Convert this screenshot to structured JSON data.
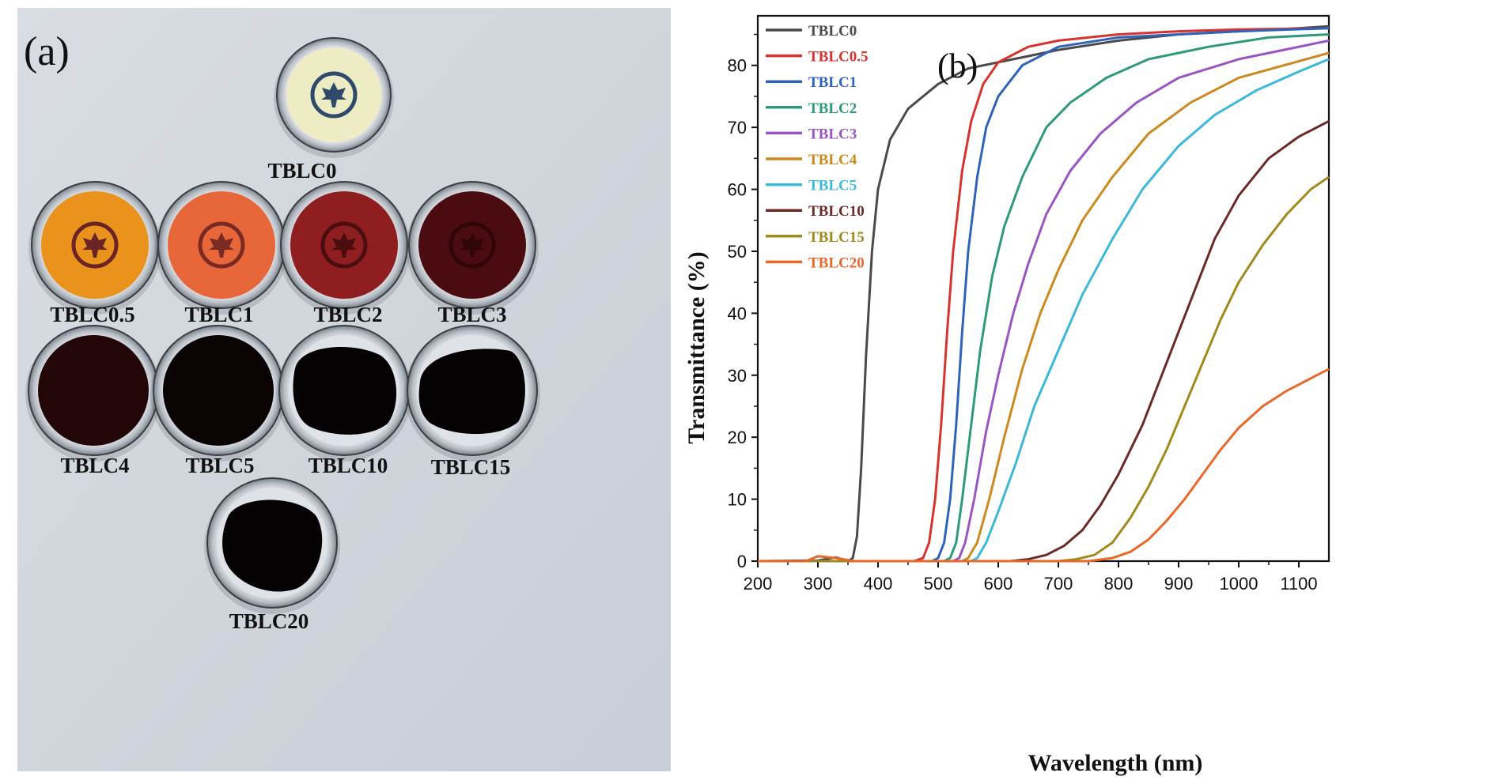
{
  "panel_a": {
    "letter": "(a)",
    "samples": [
      {
        "label": "TBLC0",
        "fill": "#eeecc4",
        "shape": "circle",
        "emblem": "#2f4a6a"
      },
      {
        "label": "TBLC0.5",
        "fill": "#e9921c",
        "shape": "circle",
        "emblem": "#6a2424"
      },
      {
        "label": "TBLC1",
        "fill": "#e8673a",
        "shape": "circle",
        "emblem": "#7a2a22"
      },
      {
        "label": "TBLC2",
        "fill": "#8e1e20",
        "shape": "circle",
        "emblem": "#4a0e10"
      },
      {
        "label": "TBLC3",
        "fill": "#4a0c10",
        "shape": "circle",
        "emblem": "#300608"
      },
      {
        "label": "TBLC4",
        "fill": "#220608",
        "shape": "circle",
        "emblem": ""
      },
      {
        "label": "TBLC5",
        "fill": "#0a0304",
        "shape": "circle",
        "emblem": ""
      },
      {
        "label": "TBLC10",
        "fill": "#050203",
        "shape": "irregular",
        "emblem": ""
      },
      {
        "label": "TBLC15",
        "fill": "#050203",
        "shape": "irregular",
        "emblem": ""
      },
      {
        "label": "TBLC20",
        "fill": "#050203",
        "shape": "irregular",
        "emblem": ""
      }
    ]
  },
  "chart_data": {
    "type": "line",
    "panel_letter": "(b)",
    "title": "",
    "xlabel": "Wavelength (nm)",
    "ylabel": "Transmittance (%)",
    "xlim": [
      200,
      1150
    ],
    "ylim": [
      0,
      88
    ],
    "xticks": [
      200,
      300,
      400,
      500,
      600,
      700,
      800,
      900,
      1000,
      1100
    ],
    "yticks": [
      0,
      10,
      20,
      30,
      40,
      50,
      60,
      70,
      80
    ],
    "legend_position": "top-left",
    "series": [
      {
        "name": "TBLC0",
        "color": "#4a4a4a",
        "points": [
          [
            200,
            0
          ],
          [
            300,
            0.1
          ],
          [
            330,
            0.6
          ],
          [
            350,
            0
          ],
          [
            358,
            0.5
          ],
          [
            365,
            4
          ],
          [
            372,
            15
          ],
          [
            380,
            33
          ],
          [
            390,
            50
          ],
          [
            400,
            60
          ],
          [
            420,
            68
          ],
          [
            450,
            73
          ],
          [
            500,
            77
          ],
          [
            550,
            79.5
          ],
          [
            600,
            80.5
          ],
          [
            650,
            81.5
          ],
          [
            700,
            82.5
          ],
          [
            800,
            84
          ],
          [
            900,
            85
          ],
          [
            1000,
            85.5
          ],
          [
            1100,
            86
          ],
          [
            1150,
            86.3
          ]
        ]
      },
      {
        "name": "TBLC0.5",
        "color": "#d6332e",
        "points": [
          [
            200,
            0
          ],
          [
            460,
            0
          ],
          [
            475,
            0.5
          ],
          [
            485,
            3
          ],
          [
            495,
            10
          ],
          [
            505,
            22
          ],
          [
            515,
            37
          ],
          [
            525,
            50
          ],
          [
            540,
            63
          ],
          [
            555,
            71
          ],
          [
            575,
            77
          ],
          [
            600,
            80.5
          ],
          [
            650,
            83
          ],
          [
            700,
            84
          ],
          [
            800,
            85
          ],
          [
            900,
            85.5
          ],
          [
            1000,
            85.8
          ],
          [
            1150,
            86
          ]
        ]
      },
      {
        "name": "TBLC1",
        "color": "#2e63b8",
        "points": [
          [
            200,
            0
          ],
          [
            490,
            0
          ],
          [
            500,
            0.5
          ],
          [
            510,
            3
          ],
          [
            520,
            10
          ],
          [
            530,
            22
          ],
          [
            540,
            37
          ],
          [
            550,
            50
          ],
          [
            565,
            62
          ],
          [
            580,
            70
          ],
          [
            600,
            75
          ],
          [
            640,
            80
          ],
          [
            700,
            83
          ],
          [
            800,
            84.5
          ],
          [
            900,
            85
          ],
          [
            1000,
            85.5
          ],
          [
            1150,
            86
          ]
        ]
      },
      {
        "name": "TBLC2",
        "color": "#2e9a7a",
        "points": [
          [
            200,
            0
          ],
          [
            510,
            0
          ],
          [
            520,
            0.5
          ],
          [
            530,
            3
          ],
          [
            540,
            10
          ],
          [
            555,
            22
          ],
          [
            570,
            34
          ],
          [
            590,
            46
          ],
          [
            610,
            54
          ],
          [
            640,
            62
          ],
          [
            680,
            70
          ],
          [
            720,
            74
          ],
          [
            780,
            78
          ],
          [
            850,
            81
          ],
          [
            950,
            83
          ],
          [
            1050,
            84.5
          ],
          [
            1150,
            85
          ]
        ]
      },
      {
        "name": "TBLC3",
        "color": "#9b55c3",
        "points": [
          [
            200,
            0
          ],
          [
            525,
            0
          ],
          [
            535,
            0.5
          ],
          [
            545,
            3
          ],
          [
            560,
            10
          ],
          [
            580,
            21
          ],
          [
            600,
            30
          ],
          [
            625,
            40
          ],
          [
            650,
            48
          ],
          [
            680,
            56
          ],
          [
            720,
            63
          ],
          [
            770,
            69
          ],
          [
            830,
            74
          ],
          [
            900,
            78
          ],
          [
            1000,
            81
          ],
          [
            1150,
            84
          ]
        ]
      },
      {
        "name": "TBLC4",
        "color": "#cc8a1e",
        "points": [
          [
            200,
            0
          ],
          [
            540,
            0
          ],
          [
            550,
            0.5
          ],
          [
            565,
            3
          ],
          [
            585,
            10
          ],
          [
            610,
            20
          ],
          [
            640,
            31
          ],
          [
            670,
            40
          ],
          [
            700,
            47
          ],
          [
            740,
            55
          ],
          [
            790,
            62
          ],
          [
            850,
            69
          ],
          [
            920,
            74
          ],
          [
            1000,
            78
          ],
          [
            1150,
            82
          ]
        ]
      },
      {
        "name": "TBLC5",
        "color": "#3cb8d8",
        "points": [
          [
            200,
            0
          ],
          [
            555,
            0
          ],
          [
            565,
            0.5
          ],
          [
            580,
            3
          ],
          [
            600,
            8
          ],
          [
            630,
            16
          ],
          [
            660,
            25
          ],
          [
            700,
            34
          ],
          [
            740,
            43
          ],
          [
            790,
            52
          ],
          [
            840,
            60
          ],
          [
            900,
            67
          ],
          [
            960,
            72
          ],
          [
            1030,
            76
          ],
          [
            1100,
            79
          ],
          [
            1150,
            81
          ]
        ]
      },
      {
        "name": "TBLC10",
        "color": "#6a2a28",
        "points": [
          [
            200,
            0
          ],
          [
            620,
            0
          ],
          [
            650,
            0.3
          ],
          [
            680,
            1
          ],
          [
            710,
            2.5
          ],
          [
            740,
            5
          ],
          [
            770,
            9
          ],
          [
            800,
            14
          ],
          [
            840,
            22
          ],
          [
            880,
            32
          ],
          [
            920,
            42
          ],
          [
            960,
            52
          ],
          [
            1000,
            59
          ],
          [
            1050,
            65
          ],
          [
            1100,
            68.5
          ],
          [
            1150,
            71
          ]
        ]
      },
      {
        "name": "TBLC15",
        "color": "#a08a1e",
        "points": [
          [
            200,
            0
          ],
          [
            700,
            0
          ],
          [
            730,
            0.3
          ],
          [
            760,
            1
          ],
          [
            790,
            3
          ],
          [
            820,
            7
          ],
          [
            850,
            12
          ],
          [
            880,
            18
          ],
          [
            910,
            25
          ],
          [
            940,
            32
          ],
          [
            970,
            39
          ],
          [
            1000,
            45
          ],
          [
            1040,
            51
          ],
          [
            1080,
            56
          ],
          [
            1120,
            60
          ],
          [
            1150,
            62
          ]
        ]
      },
      {
        "name": "TBLC20",
        "color": "#e8682a",
        "points": [
          [
            200,
            0
          ],
          [
            280,
            0
          ],
          [
            300,
            0.8
          ],
          [
            330,
            0.5
          ],
          [
            360,
            0
          ],
          [
            750,
            0
          ],
          [
            790,
            0.5
          ],
          [
            820,
            1.5
          ],
          [
            850,
            3.5
          ],
          [
            880,
            6.5
          ],
          [
            910,
            10
          ],
          [
            940,
            14
          ],
          [
            970,
            18
          ],
          [
            1000,
            21.5
          ],
          [
            1040,
            25
          ],
          [
            1080,
            27.5
          ],
          [
            1120,
            29.5
          ],
          [
            1150,
            31
          ]
        ]
      }
    ]
  }
}
